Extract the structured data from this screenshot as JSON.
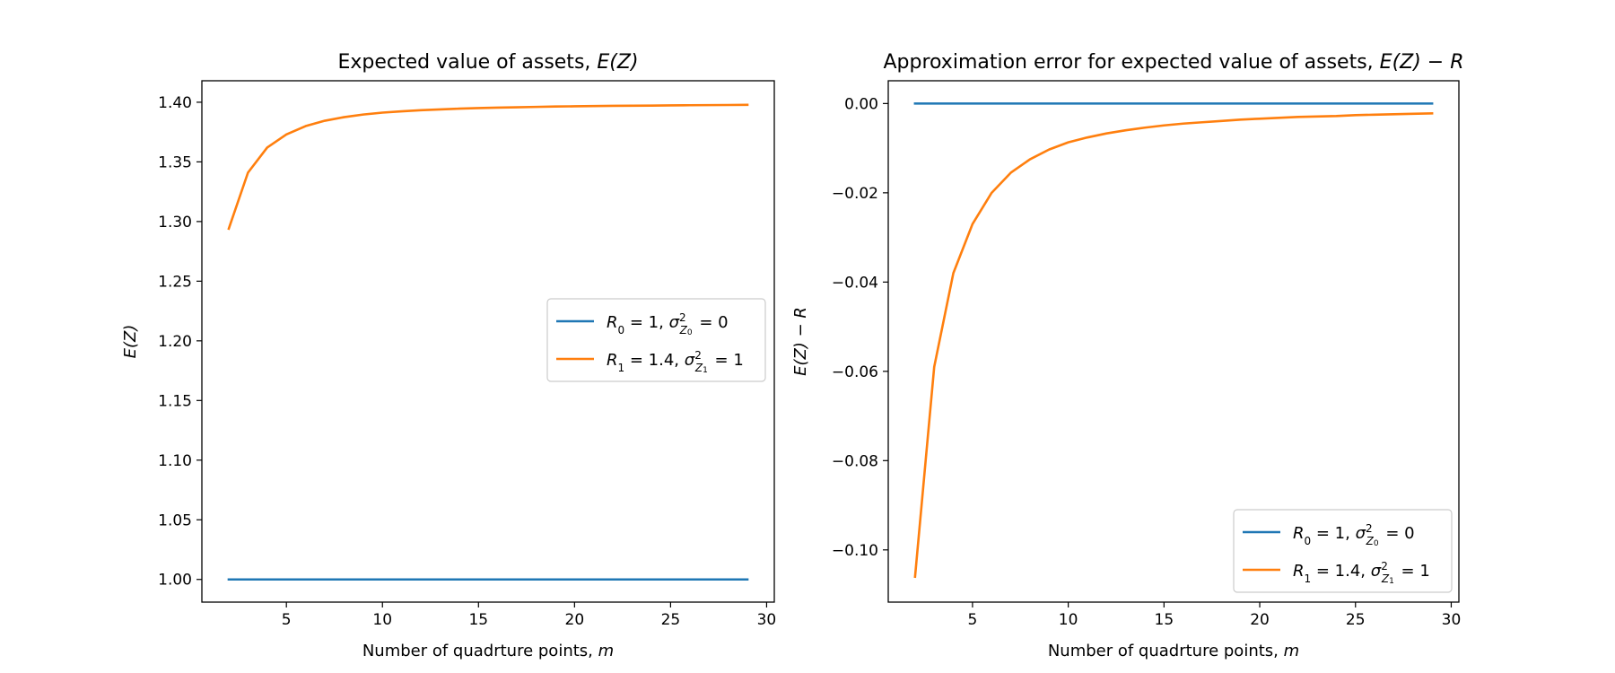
{
  "colors": {
    "blue": "#1f77b4",
    "orange": "#ff7f0e",
    "axes": "#000000",
    "legend_border": "#cccccc"
  },
  "chart_data": [
    {
      "type": "line",
      "title": {
        "prefix": "Expected value of assets, ",
        "math": "E(Z)"
      },
      "xlabel": {
        "text": "Number of quadrture points, ",
        "math": "m"
      },
      "ylabel": {
        "math": "E(Z)"
      },
      "xlim": [
        0.6,
        30.4
      ],
      "ylim": [
        0.981,
        1.418
      ],
      "xticks": [
        5,
        10,
        15,
        20,
        25,
        30
      ],
      "yticks": [
        1.0,
        1.05,
        1.1,
        1.15,
        1.2,
        1.25,
        1.3,
        1.35,
        1.4
      ],
      "ytick_decimals": 2,
      "legend_position": "center-right",
      "x": [
        2,
        3,
        4,
        5,
        6,
        7,
        8,
        9,
        10,
        11,
        12,
        13,
        14,
        15,
        16,
        17,
        18,
        19,
        20,
        21,
        22,
        23,
        24,
        25,
        26,
        27,
        28,
        29
      ],
      "series": [
        {
          "name": "R_0 = 1, σ²_{Z_0} = 0",
          "color_key": "blue",
          "values": [
            1,
            1,
            1,
            1,
            1,
            1,
            1,
            1,
            1,
            1,
            1,
            1,
            1,
            1,
            1,
            1,
            1,
            1,
            1,
            1,
            1,
            1,
            1,
            1,
            1,
            1,
            1,
            1
          ]
        },
        {
          "name": "R_1 = 1.4, σ²_{Z_1} = 1",
          "color_key": "orange",
          "values": [
            1.294,
            1.341,
            1.362,
            1.373,
            1.38,
            1.3845,
            1.3875,
            1.3897,
            1.3913,
            1.3924,
            1.3933,
            1.394,
            1.3946,
            1.3951,
            1.3955,
            1.3958,
            1.3961,
            1.3964,
            1.3966,
            1.3968,
            1.397,
            1.3971,
            1.3972,
            1.3974,
            1.3975,
            1.3976,
            1.3977,
            1.3978
          ]
        }
      ]
    },
    {
      "type": "line",
      "title": {
        "prefix": "Approximation error for expected value of assets, ",
        "math": "E(Z) − R"
      },
      "xlabel": {
        "text": "Number of quadrture points, ",
        "math": "m"
      },
      "ylabel": {
        "math": "E(Z) − R"
      },
      "xlim": [
        0.6,
        30.4
      ],
      "ylim": [
        -0.1117,
        0.0051
      ],
      "xticks": [
        5,
        10,
        15,
        20,
        25,
        30
      ],
      "yticks": [
        0.0,
        -0.02,
        -0.04,
        -0.06,
        -0.08,
        -0.1
      ],
      "ytick_decimals": 2,
      "legend_position": "lower-right",
      "x": [
        2,
        3,
        4,
        5,
        6,
        7,
        8,
        9,
        10,
        11,
        12,
        13,
        14,
        15,
        16,
        17,
        18,
        19,
        20,
        21,
        22,
        23,
        24,
        25,
        26,
        27,
        28,
        29
      ],
      "series": [
        {
          "name": "R_0 = 1, σ²_{Z_0} = 0",
          "color_key": "blue",
          "values": [
            0,
            0,
            0,
            0,
            0,
            0,
            0,
            0,
            0,
            0,
            0,
            0,
            0,
            0,
            0,
            0,
            0,
            0,
            0,
            0,
            0,
            0,
            0,
            0,
            0,
            0,
            0,
            0
          ]
        },
        {
          "name": "R_1 = 1.4, σ²_{Z_1} = 1",
          "color_key": "orange",
          "values": [
            -0.106,
            -0.059,
            -0.038,
            -0.027,
            -0.02,
            -0.0155,
            -0.0125,
            -0.0103,
            -0.0087,
            -0.0076,
            -0.0067,
            -0.006,
            -0.0054,
            -0.0049,
            -0.0045,
            -0.0042,
            -0.0039,
            -0.0036,
            -0.0034,
            -0.0032,
            -0.003,
            -0.0029,
            -0.0028,
            -0.0026,
            -0.0025,
            -0.0024,
            -0.0023,
            -0.0022
          ]
        }
      ]
    }
  ]
}
